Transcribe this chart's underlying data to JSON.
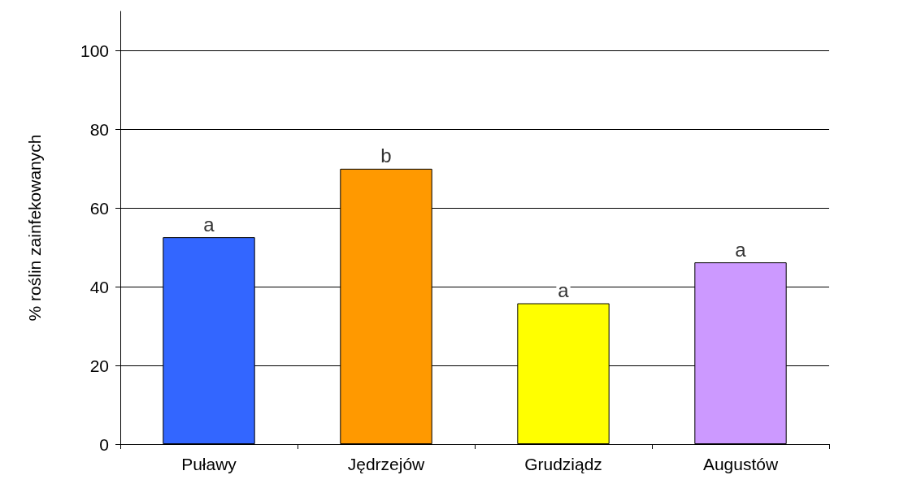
{
  "chart_data": {
    "type": "bar",
    "ylabel": "% roślin zainfekowanych",
    "categories": [
      "Puławy",
      "Jędrzejów",
      "Grudziądz",
      "Augustów"
    ],
    "values": [
      52.6,
      70.0,
      35.8,
      46.2
    ],
    "colors": [
      "#3366ff",
      "#ff9900",
      "#ffff00",
      "#cc99ff"
    ],
    "ylim": [
      0,
      110
    ],
    "yticks": [
      0,
      20,
      40,
      60,
      80,
      100
    ],
    "grid": "y",
    "annotations": [
      {
        "text": "a",
        "x": "Puławy",
        "y": 52.6
      },
      {
        "text": "b",
        "x": "Jędrzejów",
        "y": 70.0
      },
      {
        "text": "a",
        "x": "Grudziądz",
        "y": 35.8
      },
      {
        "text": "a",
        "x": "Augustów",
        "y": 46.2
      }
    ]
  }
}
